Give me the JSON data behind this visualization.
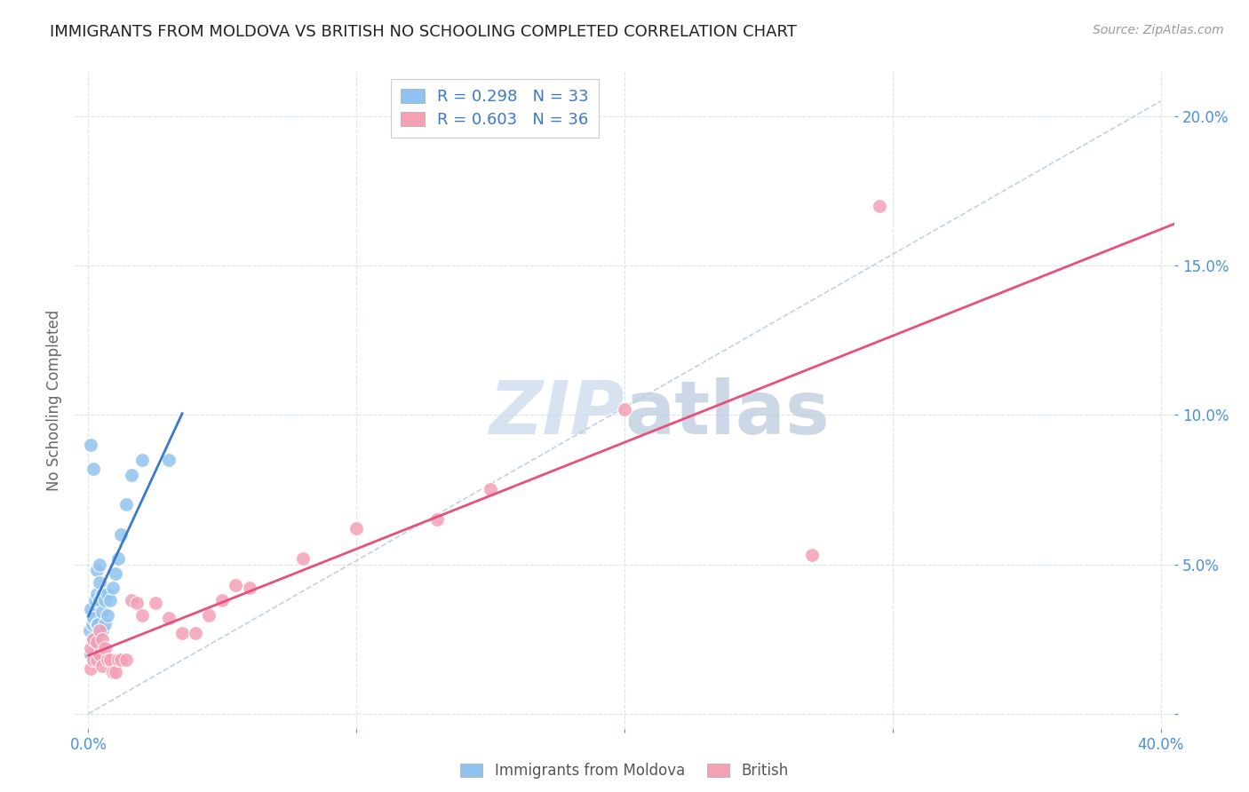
{
  "title": "IMMIGRANTS FROM MOLDOVA VS BRITISH NO SCHOOLING COMPLETED CORRELATION CHART",
  "source": "Source: ZipAtlas.com",
  "ylabel_label": "No Schooling Completed",
  "legend_label1": "Immigrants from Moldova",
  "legend_label2": "British",
  "R1": 0.298,
  "N1": 33,
  "R2": 0.603,
  "N2": 36,
  "xlim": [
    -0.005,
    0.405
  ],
  "ylim": [
    -0.005,
    0.215
  ],
  "xticks": [
    0.0,
    0.1,
    0.2,
    0.3,
    0.4
  ],
  "yticks": [
    0.0,
    0.05,
    0.1,
    0.15,
    0.2
  ],
  "color_blue": "#91C3F0",
  "color_pink": "#F4A0B5",
  "line_blue": "#3A78C9",
  "line_pink": "#E8507A",
  "diag_color": "#BBCCDD",
  "watermark_color": "#C8D8EC",
  "moldova_x": [
    0.0005,
    0.0008,
    0.001,
    0.001,
    0.0015,
    0.002,
    0.002,
    0.002,
    0.0025,
    0.003,
    0.003,
    0.003,
    0.0035,
    0.004,
    0.004,
    0.004,
    0.004,
    0.005,
    0.005,
    0.005,
    0.006,
    0.006,
    0.007,
    0.007,
    0.008,
    0.009,
    0.01,
    0.011,
    0.012,
    0.014,
    0.016,
    0.02,
    0.03
  ],
  "moldova_y": [
    0.028,
    0.035,
    0.02,
    0.09,
    0.03,
    0.025,
    0.032,
    0.082,
    0.038,
    0.03,
    0.04,
    0.048,
    0.03,
    0.028,
    0.038,
    0.044,
    0.05,
    0.028,
    0.034,
    0.04,
    0.03,
    0.038,
    0.033,
    0.04,
    0.038,
    0.042,
    0.047,
    0.052,
    0.06,
    0.07,
    0.08,
    0.085,
    0.085
  ],
  "british_x": [
    0.001,
    0.001,
    0.002,
    0.002,
    0.003,
    0.003,
    0.004,
    0.004,
    0.005,
    0.005,
    0.006,
    0.007,
    0.008,
    0.009,
    0.01,
    0.011,
    0.012,
    0.014,
    0.016,
    0.018,
    0.02,
    0.025,
    0.03,
    0.035,
    0.04,
    0.045,
    0.05,
    0.055,
    0.06,
    0.08,
    0.1,
    0.13,
    0.15,
    0.2,
    0.27,
    0.295
  ],
  "british_y": [
    0.015,
    0.022,
    0.018,
    0.025,
    0.018,
    0.024,
    0.02,
    0.028,
    0.016,
    0.025,
    0.022,
    0.018,
    0.018,
    0.014,
    0.014,
    0.018,
    0.018,
    0.018,
    0.038,
    0.037,
    0.033,
    0.037,
    0.032,
    0.027,
    0.027,
    0.033,
    0.038,
    0.043,
    0.042,
    0.052,
    0.062,
    0.065,
    0.075,
    0.102,
    0.053,
    0.17
  ]
}
